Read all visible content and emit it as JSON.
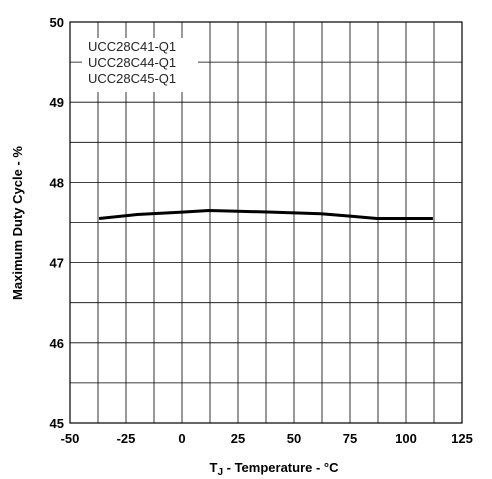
{
  "chart_data": {
    "type": "line",
    "xlabel": "T",
    "xlabel_sub": "J",
    "xlabel_rest": " - Temperature - °C",
    "ylabel": "Maximum Duty Cycle - %",
    "xlim": [
      -50,
      125
    ],
    "ylim": [
      45,
      50
    ],
    "x_ticks": [
      "-50",
      "-25",
      "0",
      "25",
      "50",
      "75",
      "100",
      "125"
    ],
    "y_ticks": [
      "45",
      "46",
      "47",
      "48",
      "49",
      "50"
    ],
    "grid": true,
    "legend_placement": "top-left",
    "legend": [
      "UCC28C41-Q1",
      "UCC28C44-Q1",
      "UCC28C45-Q1"
    ],
    "series": [
      {
        "x": [
          -37,
          -20,
          0,
          12,
          25,
          40,
          62,
          75,
          87,
          100,
          112
        ],
        "y": [
          47.55,
          47.6,
          47.63,
          47.65,
          47.64,
          47.63,
          47.61,
          47.58,
          47.55,
          47.55,
          47.55
        ],
        "color": "#000000"
      }
    ]
  }
}
